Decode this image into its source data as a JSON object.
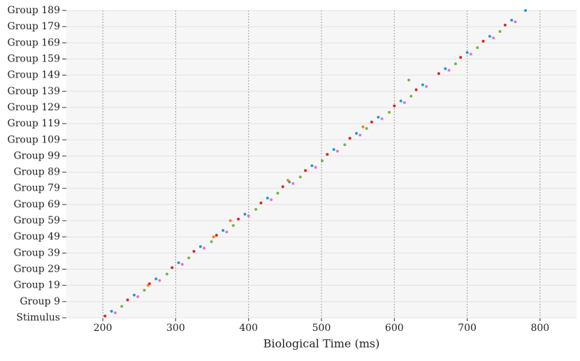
{
  "chart_data": {
    "type": "scatter",
    "xlabel": "Biological Time (ms)",
    "xlim": [
      150,
      850
    ],
    "xticks": [
      200,
      300,
      400,
      500,
      600,
      700,
      800
    ],
    "ylim": [
      0,
      190
    ],
    "yticks": [
      {
        "value": 0,
        "label": "Stimulus"
      },
      {
        "value": 10,
        "label": "Group 9"
      },
      {
        "value": 20,
        "label": "Group 19"
      },
      {
        "value": 30,
        "label": "Group 29"
      },
      {
        "value": 40,
        "label": "Group 39"
      },
      {
        "value": 50,
        "label": "Group 49"
      },
      {
        "value": 60,
        "label": "Group 59"
      },
      {
        "value": 70,
        "label": "Group 69"
      },
      {
        "value": 80,
        "label": "Group 79"
      },
      {
        "value": 90,
        "label": "Group 89"
      },
      {
        "value": 100,
        "label": "Group 99"
      },
      {
        "value": 110,
        "label": "Group 109"
      },
      {
        "value": 120,
        "label": "Group 119"
      },
      {
        "value": 130,
        "label": "Group 129"
      },
      {
        "value": 140,
        "label": "Group 139"
      },
      {
        "value": 150,
        "label": "Group 149"
      },
      {
        "value": 160,
        "label": "Group 159"
      },
      {
        "value": 170,
        "label": "Group 169"
      },
      {
        "value": 180,
        "label": "Group 179"
      },
      {
        "value": 190,
        "label": "Group 189"
      }
    ],
    "xgrid": true,
    "series": [
      {
        "color": "#1f9bd6",
        "x": [
          212,
          243,
          273,
          304,
          334,
          365,
          395,
          426,
          456,
          487,
          517,
          548,
          578,
          609,
          639,
          670,
          700,
          731,
          761,
          780
        ],
        "y": [
          4,
          14,
          24,
          34,
          44,
          54,
          64,
          74,
          84,
          94,
          104,
          114,
          124,
          134,
          144,
          154,
          164,
          174,
          184,
          190
        ]
      },
      {
        "color": "#d62728",
        "x": [
          203,
          234,
          264,
          295,
          325,
          356,
          386,
          417,
          447,
          478,
          508,
          539,
          569,
          600,
          630,
          661,
          691,
          722,
          752
        ],
        "y": [
          1,
          11,
          21,
          31,
          41,
          51,
          61,
          71,
          81,
          91,
          101,
          111,
          121,
          131,
          141,
          151,
          161,
          171,
          181
        ]
      },
      {
        "color": "#7cb342",
        "x": [
          226,
          257,
          288,
          318,
          349,
          379,
          410,
          440,
          471,
          501,
          532,
          562,
          593,
          623,
          620,
          684,
          714,
          745
        ],
        "y": [
          7,
          17,
          27,
          37,
          47,
          57,
          67,
          77,
          87,
          97,
          107,
          117,
          127,
          137,
          147,
          157,
          167,
          177
        ]
      },
      {
        "color": "#e377c2",
        "x": [
          217,
          248,
          278,
          309,
          339,
          370,
          400,
          431,
          461,
          492,
          522,
          553,
          583,
          614,
          644,
          675,
          705,
          736,
          766
        ],
        "y": [
          3,
          13,
          23,
          33,
          43,
          53,
          63,
          73,
          83,
          93,
          103,
          113,
          123,
          133,
          143,
          153,
          163,
          173,
          183
        ]
      },
      {
        "color": "#ff7f0e",
        "x": [
          262,
          352,
          375,
          454,
          557
        ],
        "y": [
          20,
          50,
          60,
          85,
          118
        ]
      }
    ]
  }
}
